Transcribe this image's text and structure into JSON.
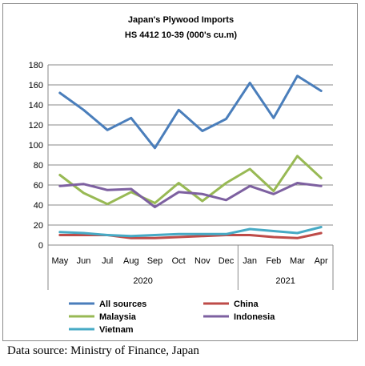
{
  "chart_data": {
    "type": "line",
    "title": "Japan's Plywood Imports",
    "subtitle": "HS 4412 10-39  (000's cu.m)",
    "categories": [
      "May",
      "Jun",
      "Jul",
      "Aug",
      "Sep",
      "Oct",
      "Nov",
      "Dec",
      "Jan",
      "Feb",
      "Mar",
      "Apr"
    ],
    "year_groups": [
      {
        "label": "2020",
        "from": 0,
        "to": 7
      },
      {
        "label": "2021",
        "from": 8,
        "to": 11
      }
    ],
    "ylim": [
      0,
      180
    ],
    "yticks": [
      0,
      20,
      40,
      60,
      80,
      100,
      120,
      140,
      160,
      180
    ],
    "grid": true,
    "legend_position": "bottom",
    "series": [
      {
        "name": "All sources",
        "color": "#4a7ebb",
        "values": [
          152,
          135,
          115,
          127,
          97,
          135,
          114,
          126,
          162,
          127,
          169,
          154
        ]
      },
      {
        "name": "China",
        "color": "#be4b48",
        "values": [
          10,
          10,
          10,
          7,
          7,
          8,
          9,
          10,
          10,
          8,
          7,
          12
        ]
      },
      {
        "name": "Malaysia",
        "color": "#98b954",
        "values": [
          70,
          52,
          41,
          53,
          42,
          62,
          44,
          62,
          76,
          54,
          89,
          67
        ]
      },
      {
        "name": "Indonesia",
        "color": "#7d60a0",
        "values": [
          59,
          61,
          55,
          56,
          38,
          53,
          51,
          45,
          59,
          51,
          62,
          59
        ]
      },
      {
        "name": "Vietnam",
        "color": "#46aac5",
        "values": [
          13,
          12,
          10,
          9,
          10,
          11,
          11,
          11,
          16,
          14,
          12,
          18
        ]
      }
    ]
  },
  "source_text": "Data source: Ministry of Finance, Japan"
}
